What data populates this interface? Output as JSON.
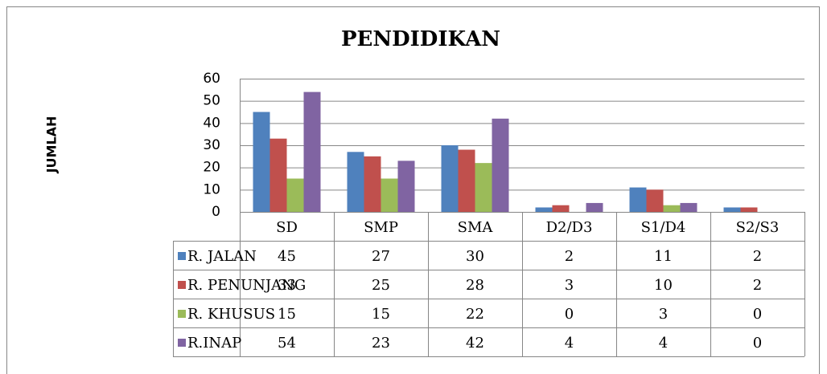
{
  "chart_data": {
    "type": "bar",
    "title": "PENDIDIKAN",
    "y_label": "JUMLAH",
    "categories": [
      "SD",
      "SMP",
      "SMA",
      "D2/D3",
      "S1/D4",
      "S2/S3"
    ],
    "series": [
      {
        "name": "R. JALAN",
        "color": "#4f81bd",
        "values": [
          45,
          27,
          30,
          2,
          11,
          2
        ]
      },
      {
        "name": "R. PENUNJANG",
        "color": "#c0504d",
        "values": [
          33,
          25,
          28,
          3,
          10,
          2
        ]
      },
      {
        "name": "R. KHUSUS",
        "color": "#9bbb59",
        "values": [
          15,
          15,
          22,
          0,
          3,
          0
        ]
      },
      {
        "name": "R.INAP",
        "color": "#8064a2",
        "values": [
          54,
          23,
          42,
          4,
          4,
          0
        ]
      }
    ],
    "ylim": [
      0,
      60
    ],
    "yticks": [
      0,
      10,
      20,
      30,
      40,
      50,
      60
    ],
    "grid": true
  }
}
